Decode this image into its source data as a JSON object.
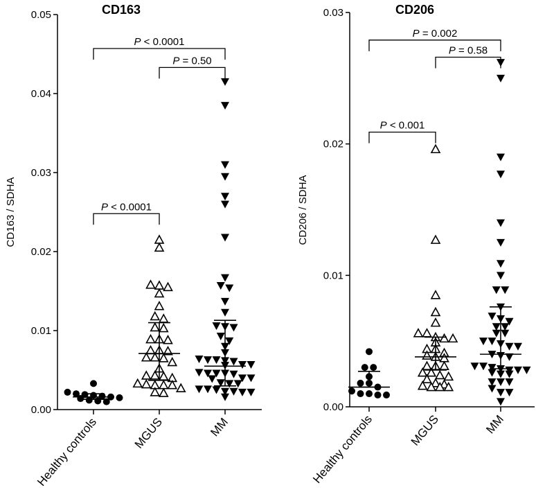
{
  "chart_data": [
    {
      "type": "scatter",
      "title": "CD163",
      "ylabel": "CD163 / SDHA",
      "ylim": [
        0,
        0.05
      ],
      "yticks": [
        "0.00",
        "0.01",
        "0.02",
        "0.03",
        "0.04",
        "0.05"
      ],
      "ytick_values": [
        0,
        0.01,
        0.02,
        0.03,
        0.04,
        0.05
      ],
      "categories": [
        "Healthy controls",
        "MGUS",
        "MM"
      ],
      "series": [
        {
          "name": "Healthy controls",
          "marker": "filled-circle",
          "values": [
            0.0033,
            0.0022,
            0.002,
            0.0019,
            0.0018,
            0.0017,
            0.0016,
            0.0015,
            0.0014,
            0.0012,
            0.0011,
            0.001
          ],
          "median": 0.0016,
          "lower": 0.0013,
          "upper": 0.002
        },
        {
          "name": "MGUS",
          "marker": "open-triangle-up",
          "values": [
            0.0215,
            0.0205,
            0.0158,
            0.0157,
            0.0155,
            0.0147,
            0.0131,
            0.0118,
            0.0115,
            0.0104,
            0.0103,
            0.0089,
            0.0089,
            0.0088,
            0.0075,
            0.0075,
            0.0074,
            0.0066,
            0.0065,
            0.0066,
            0.006,
            0.0052,
            0.0043,
            0.0042,
            0.004,
            0.0043,
            0.0031,
            0.0032,
            0.0031,
            0.0031,
            0.0033,
            0.0027,
            0.0021,
            0.0022
          ],
          "median": 0.0071,
          "lower": 0.0037,
          "upper": 0.011
        },
        {
          "name": "MM",
          "marker": "filled-triangle-down",
          "values": [
            0.0415,
            0.0385,
            0.031,
            0.0295,
            0.027,
            0.026,
            0.0218,
            0.0167,
            0.0157,
            0.0154,
            0.0137,
            0.0123,
            0.0105,
            0.0104,
            0.0106,
            0.0093,
            0.0087,
            0.008,
            0.0072,
            0.0063,
            0.0062,
            0.0061,
            0.0063,
            0.0064,
            0.0057,
            0.0056,
            0.0057,
            0.0046,
            0.0046,
            0.0046,
            0.0045,
            0.0047,
            0.004,
            0.004,
            0.0039,
            0.0033,
            0.0033,
            0.0034,
            0.0026,
            0.0025,
            0.0026,
            0.0023,
            0.0022,
            0.0023,
            0.0022,
            0.0016
          ],
          "median": 0.0055,
          "lower": 0.003,
          "upper": 0.0113
        }
      ],
      "comparisons": [
        {
          "from": 0,
          "to": 2,
          "y": 0.0457,
          "label": "P < 0.0001"
        },
        {
          "from": 1,
          "to": 2,
          "y": 0.0433,
          "label": "P = 0.50"
        },
        {
          "from": 0,
          "to": 1,
          "y": 0.0248,
          "label": "P < 0.0001"
        }
      ]
    },
    {
      "type": "scatter",
      "title": "CD206",
      "ylabel": "CD206 / SDHA",
      "ylim": [
        0,
        0.03
      ],
      "yticks": [
        "0.00",
        "0.01",
        "0.02",
        "0.03"
      ],
      "ytick_values": [
        0,
        0.01,
        0.02,
        0.03
      ],
      "categories": [
        "Healthy controls",
        "MGUS",
        "MM"
      ],
      "series": [
        {
          "name": "Healthy controls",
          "marker": "filled-circle",
          "values": [
            0.0042,
            0.003,
            0.003,
            0.0023,
            0.0018,
            0.0018,
            0.0015,
            0.0012,
            0.001,
            0.0009,
            0.0009,
            0.001
          ],
          "median": 0.0015,
          "lower": 0.0015,
          "upper": 0.0027
        },
        {
          "name": "MGUS",
          "marker": "open-triangle-up",
          "values": [
            0.0196,
            0.0127,
            0.0085,
            0.0072,
            0.0064,
            0.0056,
            0.0056,
            0.0053,
            0.0052,
            0.0052,
            0.0049,
            0.0044,
            0.0044,
            0.0041,
            0.0039,
            0.0038,
            0.0037,
            0.0031,
            0.0031,
            0.0031,
            0.0026,
            0.0026,
            0.0024,
            0.0023,
            0.0021,
            0.0018,
            0.0015,
            0.0015,
            0.0015,
            0.0016,
            0.0017
          ],
          "median": 0.0038,
          "lower": 0.0028,
          "upper": 0.0053
        },
        {
          "name": "MM",
          "marker": "filled-triangle-down",
          "values": [
            0.0262,
            0.025,
            0.019,
            0.0177,
            0.014,
            0.0125,
            0.0109,
            0.01,
            0.0089,
            0.0089,
            0.0076,
            0.0067,
            0.0065,
            0.0069,
            0.0061,
            0.0061,
            0.0056,
            0.0056,
            0.005,
            0.005,
            0.0048,
            0.0046,
            0.0046,
            0.004,
            0.0038,
            0.0039,
            0.0031,
            0.0031,
            0.003,
            0.0028,
            0.0028,
            0.0029,
            0.0028,
            0.0025,
            0.0025,
            0.0026,
            0.0019,
            0.0019,
            0.0019,
            0.0014,
            0.0011,
            0.0011,
            0.0004
          ],
          "median": 0.004,
          "lower": 0.0029,
          "upper": 0.0076
        }
      ],
      "comparisons": [
        {
          "from": 0,
          "to": 2,
          "y": 0.0279,
          "label": "P = 0.002"
        },
        {
          "from": 1,
          "to": 2,
          "y": 0.0266,
          "label": "P = 0.58"
        },
        {
          "from": 0,
          "to": 1,
          "y": 0.0209,
          "label": "P < 0.001"
        }
      ]
    }
  ]
}
